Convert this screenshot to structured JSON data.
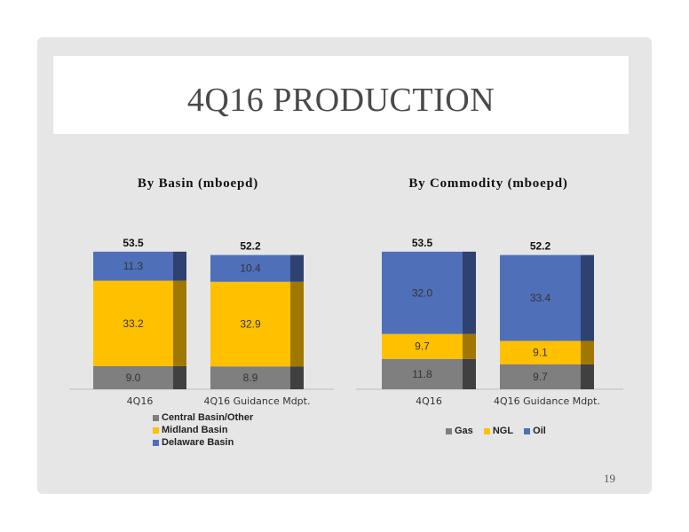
{
  "slide": {
    "title": "4Q16 PRODUCTION",
    "page_number": "19"
  },
  "colors": {
    "gray": "#7f7f7f",
    "yellow": "#ffc000",
    "blue": "#4f6fb8",
    "gray_side": "#404040",
    "yellow_side": "#a07800",
    "blue_side": "#2e4170"
  },
  "chart_data": [
    {
      "type": "bar",
      "stacked": true,
      "title": "By Basin (mboepd)",
      "categories": [
        "4Q16",
        "4Q16 Guidance Mdpt."
      ],
      "series": [
        {
          "name": "Central Basin/Other",
          "values": [
            9.0,
            8.9
          ],
          "labels": [
            "9.0",
            "8.9"
          ],
          "color": "gray"
        },
        {
          "name": "Midland Basin",
          "values": [
            33.2,
            32.9
          ],
          "labels": [
            "33.2",
            "32.9"
          ],
          "color": "yellow"
        },
        {
          "name": "Delaware Basin",
          "values": [
            11.3,
            10.4
          ],
          "labels": [
            "11.3",
            "10.4"
          ],
          "color": "blue"
        }
      ],
      "totals": [
        "53.5",
        "52.2"
      ],
      "legend": "bottom-left"
    },
    {
      "type": "bar",
      "stacked": true,
      "title": "By Commodity (mboepd)",
      "categories": [
        "4Q16",
        "4Q16 Guidance Mdpt."
      ],
      "series": [
        {
          "name": "Gas",
          "values": [
            11.8,
            9.7
          ],
          "labels": [
            "11.8",
            "9.7"
          ],
          "color": "gray"
        },
        {
          "name": "NGL",
          "values": [
            9.7,
            9.1
          ],
          "labels": [
            "9.7",
            "9.1"
          ],
          "color": "yellow"
        },
        {
          "name": "Oil",
          "values": [
            32.0,
            33.4
          ],
          "labels": [
            "32.0",
            "33.4"
          ],
          "color": "blue"
        }
      ],
      "totals": [
        "53.5",
        "52.2"
      ],
      "legend": "bottom"
    }
  ]
}
